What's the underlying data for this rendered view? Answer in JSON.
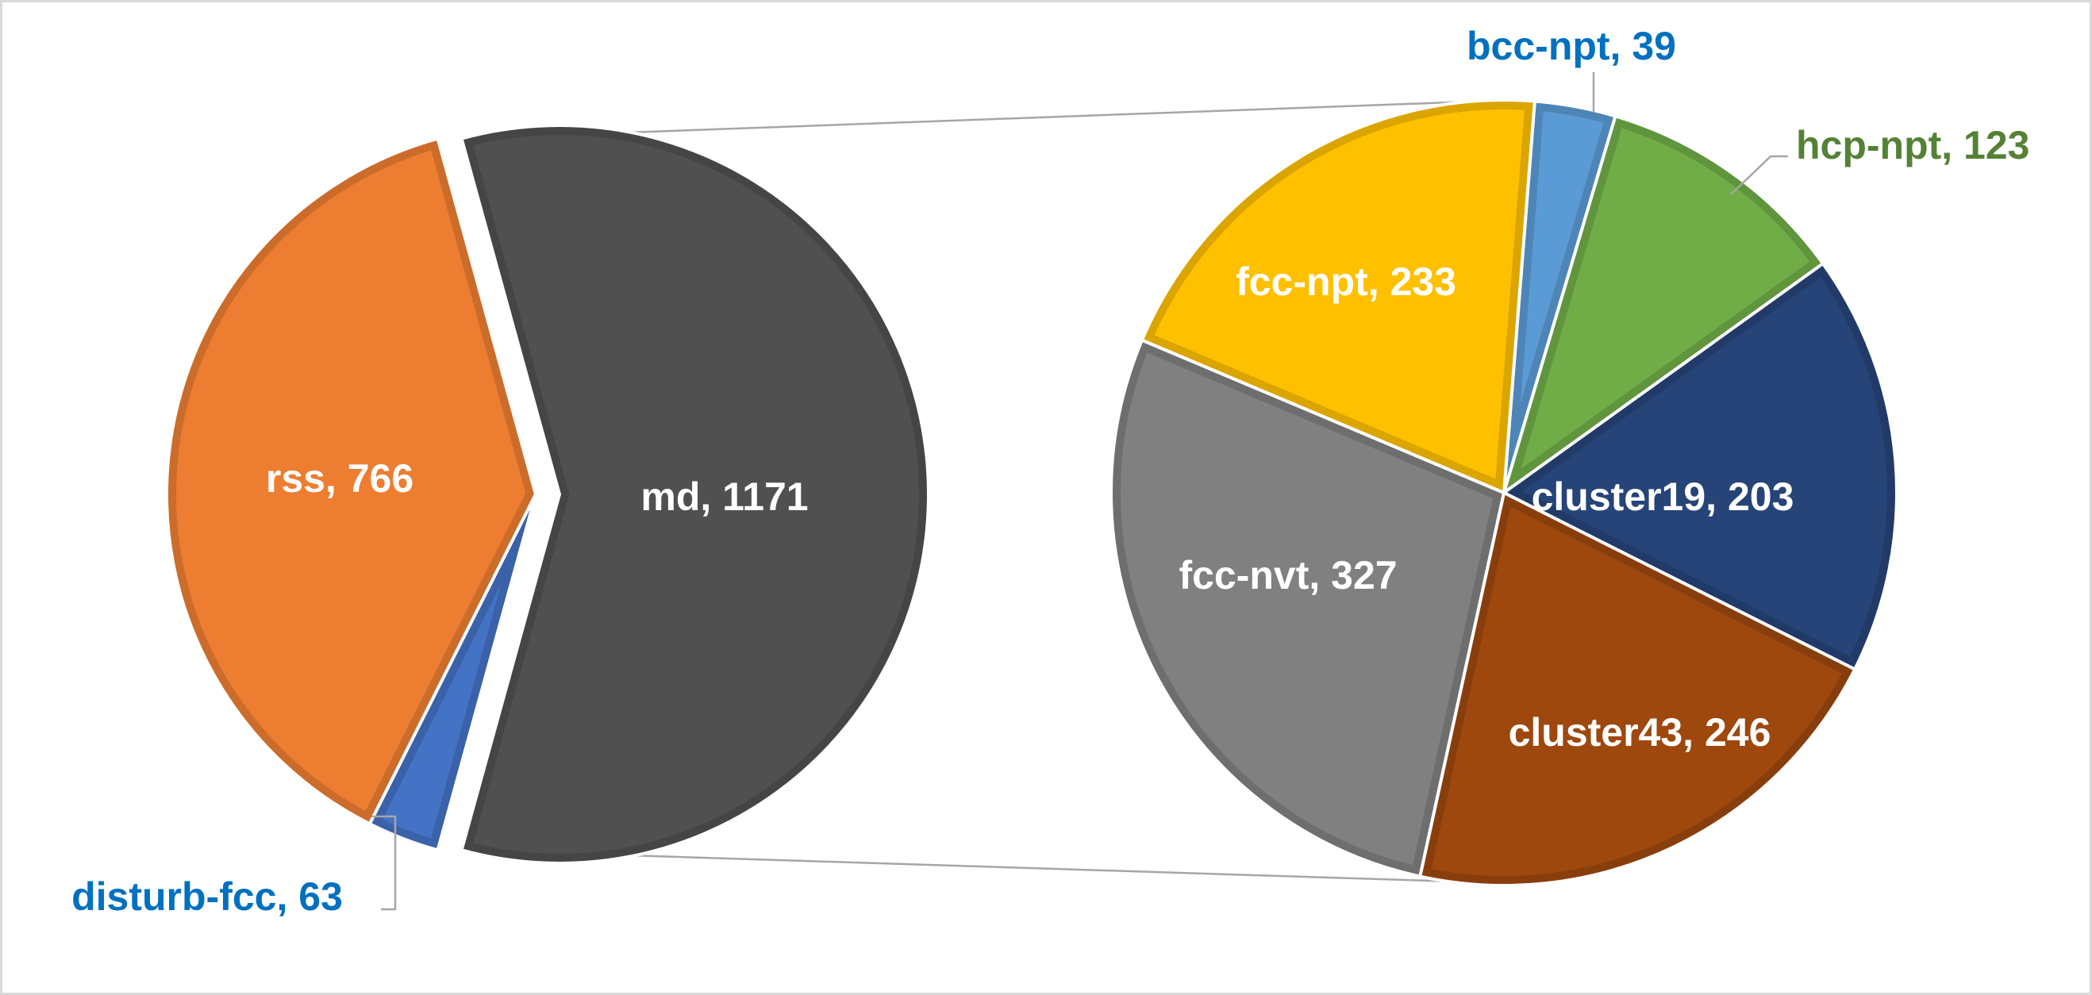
{
  "chart_data": {
    "type": "pie",
    "subtype": "pie-of-pie",
    "title": "",
    "primary": {
      "slices": [
        {
          "label": "rss, 766",
          "category": "rss",
          "value": 766,
          "color": "#ED7D31",
          "label_color": "#ffffff",
          "label_position": "inside"
        },
        {
          "label": "disturb-fcc, 63",
          "category": "disturb-fcc",
          "value": 63,
          "color": "#4472C4",
          "label_color": "#0070C0",
          "label_position": "outside"
        },
        {
          "label": "md, 1171",
          "category": "md",
          "value": 1171,
          "color": "#505050",
          "label_color": "#ffffff",
          "label_position": "inside"
        }
      ]
    },
    "secondary": {
      "breakdown_of": "md",
      "slices": [
        {
          "label": "bcc-npt, 39",
          "category": "bcc-npt",
          "value": 39,
          "color": "#5B9BD5",
          "label_color": "#0070C0",
          "label_position": "outside"
        },
        {
          "label": "hcp-npt, 123",
          "category": "hcp-npt",
          "value": 123,
          "color": "#70AD47",
          "label_color": "#548235",
          "label_position": "outside"
        },
        {
          "label": "cluster19, 203",
          "category": "cluster19",
          "value": 203,
          "color": "#264478",
          "label_color": "#ffffff",
          "label_position": "inside"
        },
        {
          "label": "cluster43, 246",
          "category": "cluster43",
          "value": 246,
          "color": "#9E480E",
          "label_color": "#ffffff",
          "label_position": "inside"
        },
        {
          "label": "fcc-nvt, 327",
          "category": "fcc-nvt",
          "value": 327,
          "color": "#808080",
          "label_color": "#ffffff",
          "label_position": "inside"
        },
        {
          "label": "fcc-npt, 233",
          "category": "fcc-npt",
          "value": 233,
          "color": "#FFC000",
          "label_color": "#ffffff",
          "label_position": "inside"
        }
      ]
    },
    "legend": "none"
  }
}
